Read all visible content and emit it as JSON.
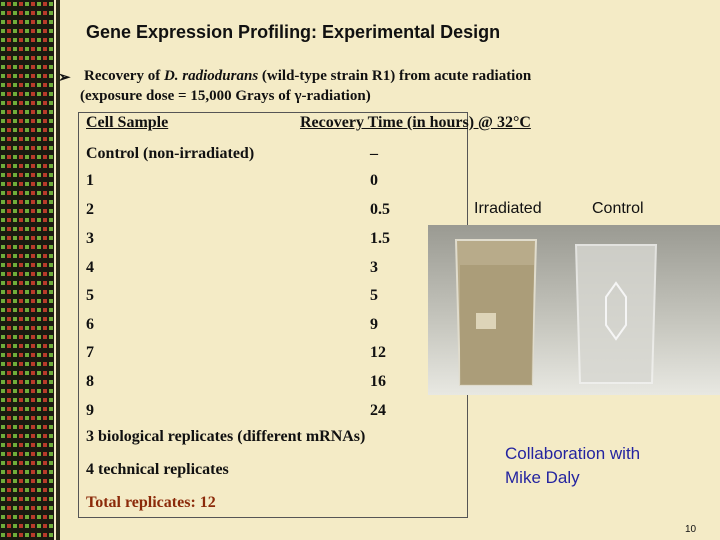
{
  "header": {
    "title": "Gene Expression Profiling:  Experimental Design"
  },
  "bullet": {
    "prefix": "Recovery of ",
    "species": "D. radiodurans",
    "rest": " (wild-type strain R1) from acute radiation",
    "line2": "(exposure dose = 15,000 Grays of γ-radiation)"
  },
  "table": {
    "columns": [
      "Cell Sample",
      "Recovery Time (in hours) @ 32°C"
    ],
    "rows": [
      [
        "Control (non-irradiated)",
        "–"
      ],
      [
        "1",
        "0"
      ],
      [
        "2",
        "0.5"
      ],
      [
        "3",
        "1.5"
      ],
      [
        "4",
        "3"
      ],
      [
        "5",
        "5"
      ],
      [
        "6",
        "9"
      ],
      [
        "7",
        "12"
      ],
      [
        "8",
        "16"
      ],
      [
        "9",
        "24"
      ]
    ]
  },
  "notes": [
    "3 biological replicates (different mRNAs)",
    "4 technical replicates",
    "Total replicates: 12"
  ],
  "photo": {
    "labels": [
      "Irradiated",
      "Control"
    ]
  },
  "collaboration": [
    "Collaboration with",
    "Mike Daly"
  ],
  "page_number": "10"
}
